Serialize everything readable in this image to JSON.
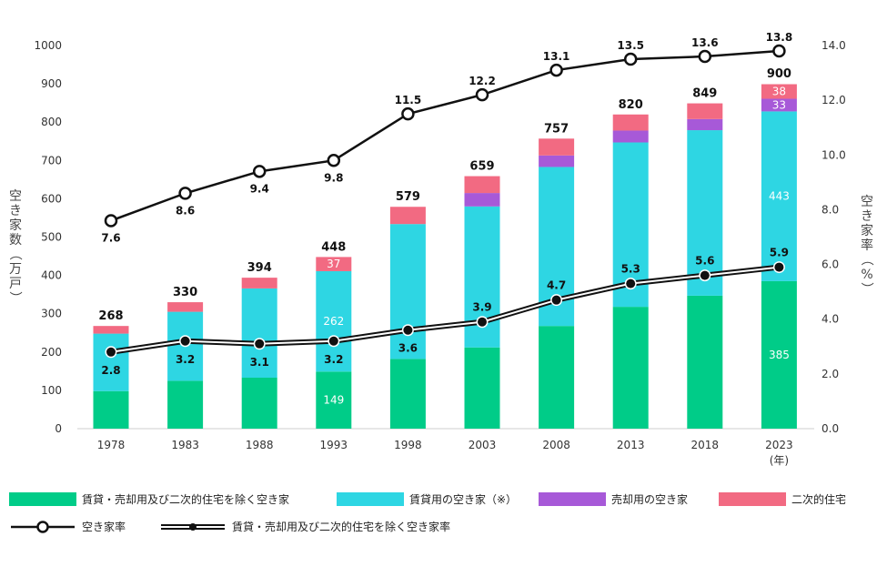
{
  "chart_data": {
    "type": "bar",
    "stacked": true,
    "categories": [
      "1978",
      "1983",
      "1988",
      "1993",
      "1998",
      "2003",
      "2008",
      "2013",
      "2018",
      "2023"
    ],
    "x_unit": "(年)",
    "series": [
      {
        "name": "賃貸・売却用及び二次的住宅を除く空き家",
        "color": "#00cc88",
        "values": [
          98,
          125,
          133,
          149,
          182,
          212,
          268,
          318,
          347,
          385
        ]
      },
      {
        "name": "賃貸用の空き家（※）",
        "color": "#2ed6e3",
        "values": [
          150,
          180,
          233,
          262,
          352,
          368,
          415,
          429,
          432,
          443
        ]
      },
      {
        "name": "売却用の空き家",
        "color": "#a759d8",
        "values": [
          0,
          0,
          0,
          0,
          0,
          35,
          30,
          31,
          29,
          33
        ]
      },
      {
        "name": "二次的住宅",
        "color": "#f26a82",
        "values": [
          20,
          25,
          28,
          37,
          45,
          44,
          44,
          42,
          41,
          38
        ]
      }
    ],
    "totals": [
      268,
      330,
      394,
      448,
      579,
      659,
      757,
      820,
      849,
      900
    ],
    "inbar_labels": [
      {
        "index": 3,
        "series": 0,
        "text": "149"
      },
      {
        "index": 3,
        "series": 1,
        "text": "262"
      },
      {
        "index": 3,
        "series": 3,
        "text": "37"
      },
      {
        "index": 9,
        "series": 0,
        "text": "385"
      },
      {
        "index": 9,
        "series": 1,
        "text": "443"
      },
      {
        "index": 9,
        "series": 2,
        "text": "33"
      },
      {
        "index": 9,
        "series": 3,
        "text": "38"
      }
    ],
    "lines": [
      {
        "name": "空き家率",
        "style": "single",
        "values": [
          7.6,
          8.6,
          9.4,
          9.8,
          11.5,
          12.2,
          13.1,
          13.5,
          13.6,
          13.8
        ],
        "labels": [
          "7.6",
          "8.6",
          "9.4",
          "9.8",
          "11.5",
          "12.2",
          "13.1",
          "13.5",
          "13.6",
          "13.8"
        ]
      },
      {
        "name": "賃貸・売却用及び二次的住宅を除く空き家率",
        "style": "double",
        "values": [
          2.8,
          3.2,
          3.1,
          3.2,
          3.6,
          3.9,
          4.7,
          5.3,
          5.6,
          5.9
        ],
        "labels": [
          "2.8",
          "3.2",
          "3.1",
          "3.2",
          "3.6",
          "3.9",
          "4.7",
          "5.3",
          "5.6",
          "5.9"
        ]
      }
    ],
    "ylabel_left": "空き家数（万戸）",
    "ylabel_right": "空き家率（%）",
    "ylim_left": [
      0,
      1000
    ],
    "yticks_left": [
      "0",
      "100",
      "200",
      "300",
      "400",
      "500",
      "600",
      "700",
      "800",
      "900",
      "1000"
    ],
    "ylim_right": [
      0,
      14
    ],
    "yticks_right": [
      "0.0",
      "2.0",
      "4.0",
      "6.0",
      "8.0",
      "10.0",
      "12.0",
      "14.0"
    ],
    "grid": false,
    "legend_position": "bottom"
  }
}
